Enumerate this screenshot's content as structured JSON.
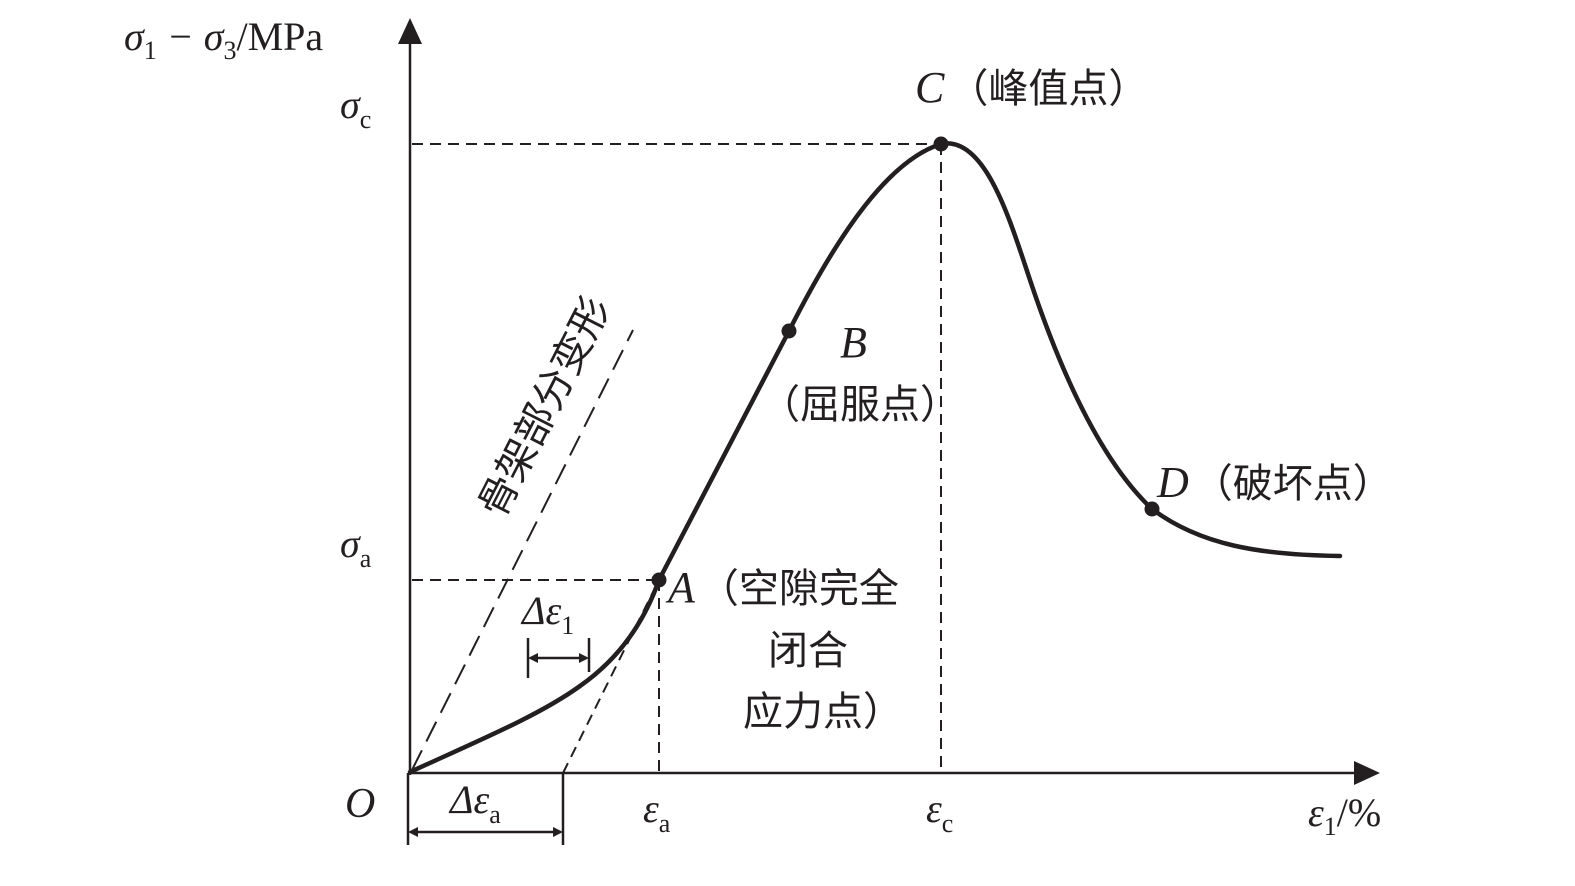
{
  "axes": {
    "y_label": {
      "main": "σ",
      "sub1": "1",
      "minus": " − σ",
      "sub2": "3",
      "unit": "/MPa"
    },
    "x_label": {
      "main": "ε",
      "sub": "1",
      "unit": "/%"
    },
    "origin": "O"
  },
  "ticks": {
    "y": [
      {
        "main": "σ",
        "sub": "c"
      },
      {
        "main": "σ",
        "sub": "a"
      }
    ],
    "x": [
      {
        "main": "ε",
        "sub": "a"
      },
      {
        "main": "ε",
        "sub": "c"
      }
    ]
  },
  "points": {
    "A": {
      "letter": "A",
      "desc1": "（空隙完全",
      "desc2": "闭合",
      "desc3": "应力点）"
    },
    "B": {
      "letter": "B",
      "desc": "（屈服点）"
    },
    "C": {
      "letter": "C",
      "desc": "（峰值点）"
    },
    "D": {
      "letter": "D",
      "desc": "（破坏点）"
    }
  },
  "skeleton_label": "骨架部分变形",
  "deltas": {
    "d1": {
      "main": "Δε",
      "sub": "1"
    },
    "da": {
      "main": "Δε",
      "sub": "a"
    }
  },
  "colors": {
    "line": "#231f20",
    "background": "#ffffff"
  }
}
